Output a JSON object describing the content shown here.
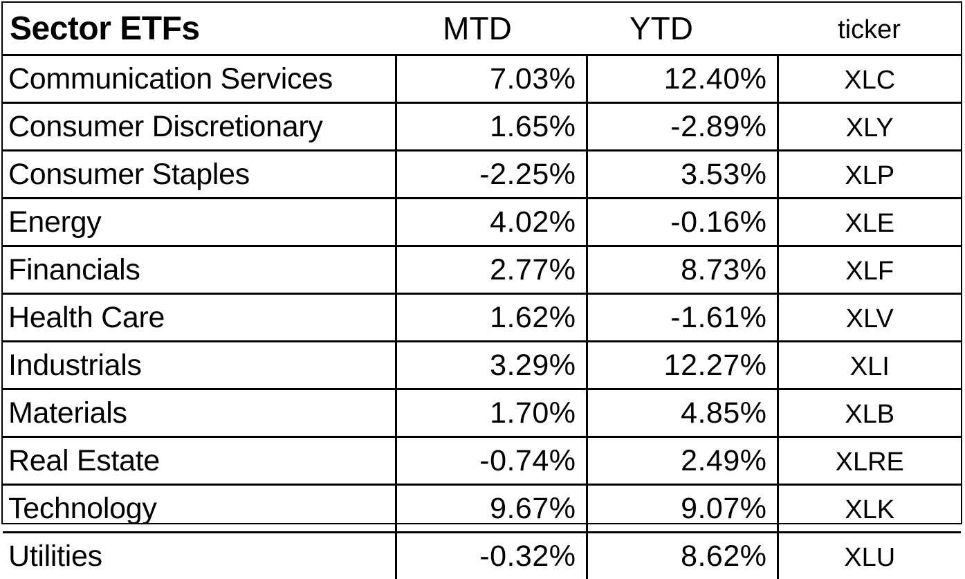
{
  "table": {
    "title": "Sector ETFs",
    "headers": {
      "mtd": "MTD",
      "ytd": "YTD",
      "ticker": "ticker"
    },
    "rows": [
      {
        "sector": "Communication Services",
        "mtd": "7.03%",
        "ytd": "12.40%",
        "ticker": "XLC"
      },
      {
        "sector": "Consumer Discretionary",
        "mtd": "1.65%",
        "ytd": "-2.89%",
        "ticker": "XLY"
      },
      {
        "sector": "Consumer Staples",
        "mtd": "-2.25%",
        "ytd": "3.53%",
        "ticker": "XLP"
      },
      {
        "sector": "Energy",
        "mtd": "4.02%",
        "ytd": "-0.16%",
        "ticker": "XLE"
      },
      {
        "sector": "Financials",
        "mtd": "2.77%",
        "ytd": "8.73%",
        "ticker": "XLF"
      },
      {
        "sector": "Health Care",
        "mtd": "1.62%",
        "ytd": "-1.61%",
        "ticker": "XLV"
      },
      {
        "sector": "Industrials",
        "mtd": "3.29%",
        "ytd": "12.27%",
        "ticker": "XLI"
      },
      {
        "sector": "Materials",
        "mtd": "1.70%",
        "ytd": "4.85%",
        "ticker": "XLB"
      },
      {
        "sector": "Real Estate",
        "mtd": "-0.74%",
        "ytd": "2.49%",
        "ticker": "XLRE"
      },
      {
        "sector": "Technology",
        "mtd": "9.67%",
        "ytd": "9.07%",
        "ticker": "XLK"
      },
      {
        "sector": "Utilities",
        "mtd": "-0.32%",
        "ytd": "8.62%",
        "ticker": "XLU"
      }
    ]
  }
}
